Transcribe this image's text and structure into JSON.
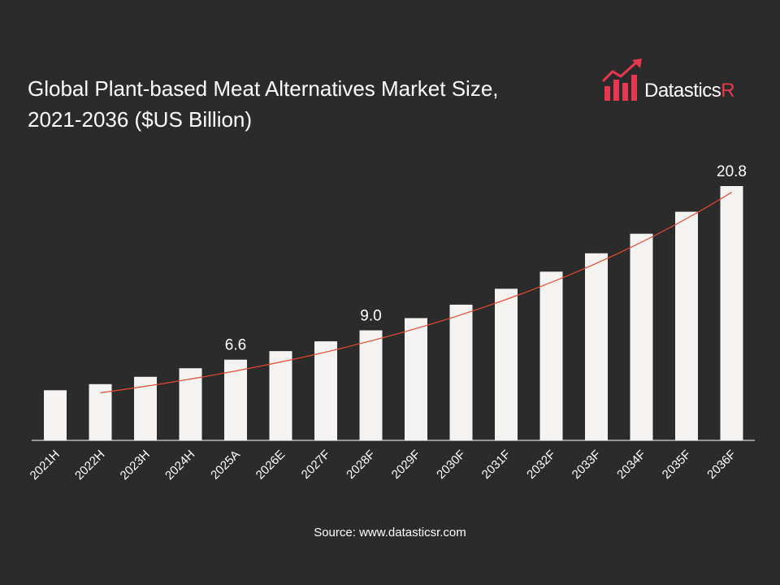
{
  "brand": {
    "name_main": "Datastics",
    "name_accent": "R",
    "accent_color": "#e8384f"
  },
  "title_line1": "Global Plant-based Meat Alternatives Market Size,",
  "title_line2": "2021-2036 ($US Billion)",
  "source": "Source: www.datasticsr.com",
  "chart_data": {
    "type": "bar",
    "title": "Global Plant-based Meat Alternatives Market Size, 2021-2036 ($US Billion)",
    "categories": [
      "2021H",
      "2022H",
      "2023H",
      "2024H",
      "2025A",
      "2026E",
      "2027F",
      "2028F",
      "2029F",
      "2030F",
      "2031F",
      "2032F",
      "2033F",
      "2034F",
      "2035F",
      "2036F"
    ],
    "values": [
      4.1,
      4.6,
      5.2,
      5.9,
      6.6,
      7.3,
      8.1,
      9.0,
      10.0,
      11.1,
      12.4,
      13.8,
      15.3,
      16.9,
      18.7,
      20.8
    ],
    "data_labels": {
      "4": "6.6",
      "7": "9.0",
      "15": "20.8"
    },
    "trendline": true,
    "bar_color": "#f5f2f2",
    "trend_color": "#e8492e",
    "background": "#2b2b2b",
    "ylim": [
      0,
      20.8
    ],
    "grid": false,
    "legend": "none",
    "xlabel": "",
    "ylabel": ""
  }
}
